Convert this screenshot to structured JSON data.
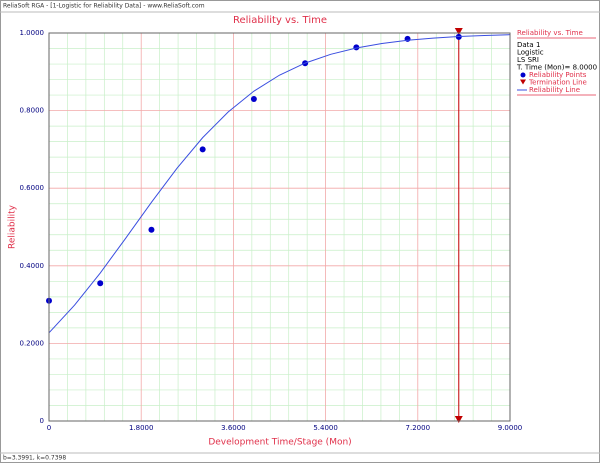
{
  "window_title": "ReliaSoft RGA - [1-Logistic for Reliability Data] - www.ReliaSoft.com",
  "status": "b=3.3991, k=0.7398",
  "chart_data": {
    "type": "line",
    "title": "Reliability vs. Time",
    "x_label": "Development Time/Stage (Mon)",
    "y_label": "Reliability",
    "xlim": [
      0,
      9
    ],
    "ylim": [
      0,
      1
    ],
    "xticks": [
      0,
      {
        "value": 1.8,
        "label": "1.8000"
      },
      {
        "value": 3.6,
        "label": "3.6000"
      },
      {
        "value": 5.4,
        "label": "5.4000"
      },
      {
        "value": 7.2,
        "label": "7.2000"
      },
      {
        "value": 9,
        "label": "9.0000"
      }
    ],
    "yticks": [
      0,
      {
        "value": 0.2,
        "label": "0.2000"
      },
      {
        "value": 0.4,
        "label": "0.4000"
      },
      {
        "value": 0.6,
        "label": "0.6000"
      },
      {
        "value": 0.8,
        "label": "0.8000"
      },
      {
        "value": 1,
        "label": "1.0000"
      }
    ],
    "grid": true,
    "series": [
      {
        "name": "Reliability Points",
        "type": "scatter",
        "color": "#0000cc",
        "x": [
          0,
          1,
          2,
          3,
          4,
          5,
          6,
          7,
          8
        ],
        "values": [
          0.31,
          0.355,
          0.493,
          0.7,
          0.83,
          0.922,
          0.963,
          0.985,
          0.99
        ]
      },
      {
        "name": "Reliability Line",
        "type": "line",
        "color": "#3a4ee0",
        "x": [
          0,
          0.5,
          1,
          1.5,
          2,
          2.5,
          3,
          3.5,
          4,
          4.5,
          5,
          5.5,
          6,
          6.5,
          7,
          7.5,
          8,
          8.5,
          9
        ],
        "values": [
          0.2273,
          0.2987,
          0.3814,
          0.4716,
          0.5637,
          0.6516,
          0.7303,
          0.7967,
          0.8501,
          0.8914,
          0.9224,
          0.9451,
          0.9614,
          0.973,
          0.9812,
          0.9869,
          0.9909,
          0.9937,
          0.9957
        ]
      }
    ],
    "termination": {
      "name": "Termination Line",
      "color": "#c00000",
      "x": 8
    },
    "legend": {
      "title": "Reliability vs. Time",
      "info": [
        "Data 1",
        "Logistic",
        "LS SRI",
        "T. Time (Mon)= 8.0000"
      ]
    }
  }
}
